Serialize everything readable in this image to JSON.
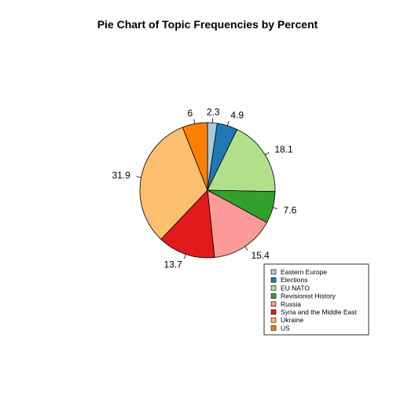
{
  "chart_data": {
    "type": "pie",
    "title": "Pie Chart of Topic Frequencies by Percent",
    "start": "top",
    "direction": "clockwise",
    "categories": [
      "Eastern Europe",
      "Elections",
      "EU NATO",
      "Revisionist History",
      "Russia",
      "Syria and the Middle East",
      "Ukraine",
      "US"
    ],
    "values": [
      2.3,
      4.9,
      18.1,
      7.6,
      15.4,
      13.7,
      31.9,
      6
    ],
    "labels": [
      "2.3",
      "4.9",
      "18.1",
      "7.6",
      "15.4",
      "13.7",
      "31.9",
      "6"
    ],
    "colors": [
      "#A6CEE3",
      "#1F78B4",
      "#B2DF8A",
      "#33A02C",
      "#FB9A99",
      "#E31A1C",
      "#FDBF6F",
      "#FF7F00"
    ],
    "legend": {
      "position": "bottom-right",
      "entries": [
        "Eastern Europe",
        "Elections",
        "EU NATO",
        "Revisionist History",
        "Russia",
        "Syria and the Middle East",
        "Ukraine",
        "US"
      ]
    }
  }
}
